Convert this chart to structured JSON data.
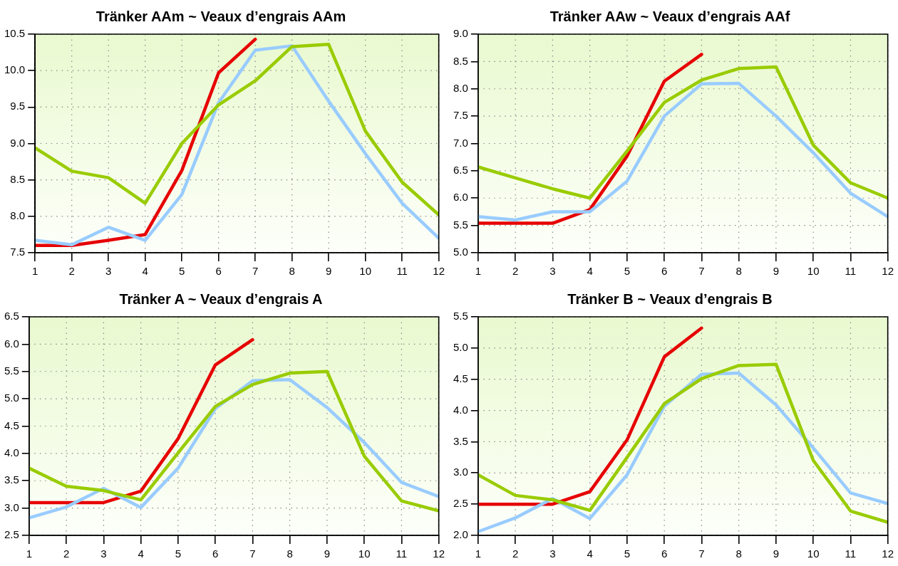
{
  "chart_data": [
    {
      "type": "line",
      "title": "Tränker AAm ~ Veaux d’engrais AAm",
      "x": [
        1,
        2,
        3,
        4,
        5,
        6,
        7,
        8,
        9,
        10,
        11,
        12
      ],
      "xlim": [
        1,
        12
      ],
      "xticks": [
        1,
        2,
        3,
        4,
        5,
        6,
        7,
        8,
        9,
        10,
        11,
        12
      ],
      "ylim": [
        7.5,
        10.5
      ],
      "yticks": [
        {
          "value": 7.5,
          "label": "7.5"
        },
        {
          "value": 8,
          "label": "8.0"
        },
        {
          "value": 8.5,
          "label": "8.5"
        },
        {
          "value": 9,
          "label": "9.0"
        },
        {
          "value": 9.5,
          "label": "9.5"
        },
        {
          "value": 10,
          "label": "10.0"
        },
        {
          "value": 10.5,
          "label": "10.5"
        }
      ],
      "grid": true,
      "marker": "none",
      "line_style": "solid",
      "series": [
        {
          "color": "#99cc00",
          "values": [
            8.94,
            8.62,
            8.53,
            8.18,
            9.0,
            9.53,
            9.86,
            10.33,
            10.36,
            9.17,
            8.47,
            8.02
          ]
        },
        {
          "color": "#99ccff",
          "values": [
            7.67,
            7.61,
            7.85,
            7.67,
            8.3,
            9.56,
            10.28,
            10.34,
            9.58,
            8.86,
            8.18,
            7.7
          ]
        },
        {
          "color": "#e60000",
          "values": [
            7.6,
            7.6,
            7.67,
            7.75,
            8.63,
            9.97,
            10.43,
            null,
            null,
            null,
            null,
            null
          ]
        }
      ]
    },
    {
      "type": "line",
      "title": "Tränker AAw ~ Veaux d’engrais AAf",
      "x": [
        1,
        2,
        3,
        4,
        5,
        6,
        7,
        8,
        9,
        10,
        11,
        12
      ],
      "xlim": [
        1,
        12
      ],
      "xticks": [
        1,
        2,
        3,
        4,
        5,
        6,
        7,
        8,
        9,
        10,
        11,
        12
      ],
      "ylim": [
        5,
        9
      ],
      "yticks": [
        {
          "value": 5,
          "label": "5.0"
        },
        {
          "value": 5.5,
          "label": "5.5"
        },
        {
          "value": 6,
          "label": "6.0"
        },
        {
          "value": 6.5,
          "label": "6.5"
        },
        {
          "value": 7,
          "label": "7.0"
        },
        {
          "value": 7.5,
          "label": "7.5"
        },
        {
          "value": 8,
          "label": "8.0"
        },
        {
          "value": 8.5,
          "label": "8.5"
        },
        {
          "value": 9,
          "label": "9.0"
        }
      ],
      "grid": true,
      "marker": "none",
      "line_style": "solid",
      "series": [
        {
          "color": "#99cc00",
          "values": [
            6.57,
            6.37,
            6.17,
            6.0,
            6.86,
            7.75,
            8.16,
            8.37,
            8.4,
            6.97,
            6.28,
            6.0
          ]
        },
        {
          "color": "#99ccff",
          "values": [
            5.66,
            5.6,
            5.75,
            5.75,
            6.31,
            7.5,
            8.09,
            8.1,
            7.5,
            6.83,
            6.09,
            5.66
          ]
        },
        {
          "color": "#e60000",
          "values": [
            5.54,
            5.54,
            5.54,
            5.79,
            6.77,
            8.14,
            8.63,
            null,
            null,
            null,
            null,
            null
          ]
        }
      ]
    },
    {
      "type": "line",
      "title": "Tränker A ~ Veaux d’engrais A",
      "x": [
        1,
        2,
        3,
        4,
        5,
        6,
        7,
        8,
        9,
        10,
        11,
        12
      ],
      "xlim": [
        1,
        12
      ],
      "xticks": [
        1,
        2,
        3,
        4,
        5,
        6,
        7,
        8,
        9,
        10,
        11,
        12
      ],
      "ylim": [
        2.5,
        6.5
      ],
      "yticks": [
        {
          "value": 2.5,
          "label": "2.5"
        },
        {
          "value": 3,
          "label": "3.0"
        },
        {
          "value": 3.5,
          "label": "3.5"
        },
        {
          "value": 4,
          "label": "4.0"
        },
        {
          "value": 4.5,
          "label": "4.5"
        },
        {
          "value": 5,
          "label": "5.0"
        },
        {
          "value": 5.5,
          "label": "5.5"
        },
        {
          "value": 6,
          "label": "6.0"
        },
        {
          "value": 6.5,
          "label": "6.5"
        }
      ],
      "grid": true,
      "marker": "none",
      "line_style": "solid",
      "series": [
        {
          "color": "#99cc00",
          "values": [
            3.73,
            3.4,
            3.32,
            3.15,
            4.01,
            4.86,
            5.26,
            5.47,
            5.5,
            3.95,
            3.13,
            2.95
          ]
        },
        {
          "color": "#99ccff",
          "values": [
            2.82,
            3.02,
            3.36,
            3.01,
            3.73,
            4.82,
            5.33,
            5.35,
            4.84,
            4.2,
            3.47,
            3.21
          ]
        },
        {
          "color": "#e60000",
          "values": [
            3.1,
            3.1,
            3.1,
            3.31,
            4.27,
            5.62,
            6.08,
            null,
            null,
            null,
            null,
            null
          ]
        }
      ]
    },
    {
      "type": "line",
      "title": "Tränker B ~ Veaux d’engrais B",
      "x": [
        1,
        2,
        3,
        4,
        5,
        6,
        7,
        8,
        9,
        10,
        11,
        12
      ],
      "xlim": [
        1,
        12
      ],
      "xticks": [
        1,
        2,
        3,
        4,
        5,
        6,
        7,
        8,
        9,
        10,
        11,
        12
      ],
      "ylim": [
        2,
        5.5
      ],
      "yticks": [
        {
          "value": 2,
          "label": "2.0"
        },
        {
          "value": 2.5,
          "label": "2.5"
        },
        {
          "value": 3,
          "label": "3.0"
        },
        {
          "value": 3.5,
          "label": "3.5"
        },
        {
          "value": 4,
          "label": "4.0"
        },
        {
          "value": 4.5,
          "label": "4.5"
        },
        {
          "value": 5,
          "label": "5.0"
        },
        {
          "value": 5.5,
          "label": "5.5"
        }
      ],
      "grid": true,
      "marker": "none",
      "line_style": "solid",
      "series": [
        {
          "color": "#99cc00",
          "values": [
            2.97,
            2.64,
            2.57,
            2.4,
            3.25,
            4.11,
            4.51,
            4.72,
            4.74,
            3.2,
            2.39,
            2.21
          ]
        },
        {
          "color": "#99ccff",
          "values": [
            2.06,
            2.28,
            2.59,
            2.27,
            2.97,
            4.07,
            4.58,
            4.6,
            4.09,
            3.4,
            2.68,
            2.51
          ]
        },
        {
          "color": "#e60000",
          "values": [
            2.5,
            2.5,
            2.5,
            2.7,
            3.53,
            4.86,
            5.32,
            null,
            null,
            null,
            null,
            null
          ]
        }
      ]
    }
  ]
}
